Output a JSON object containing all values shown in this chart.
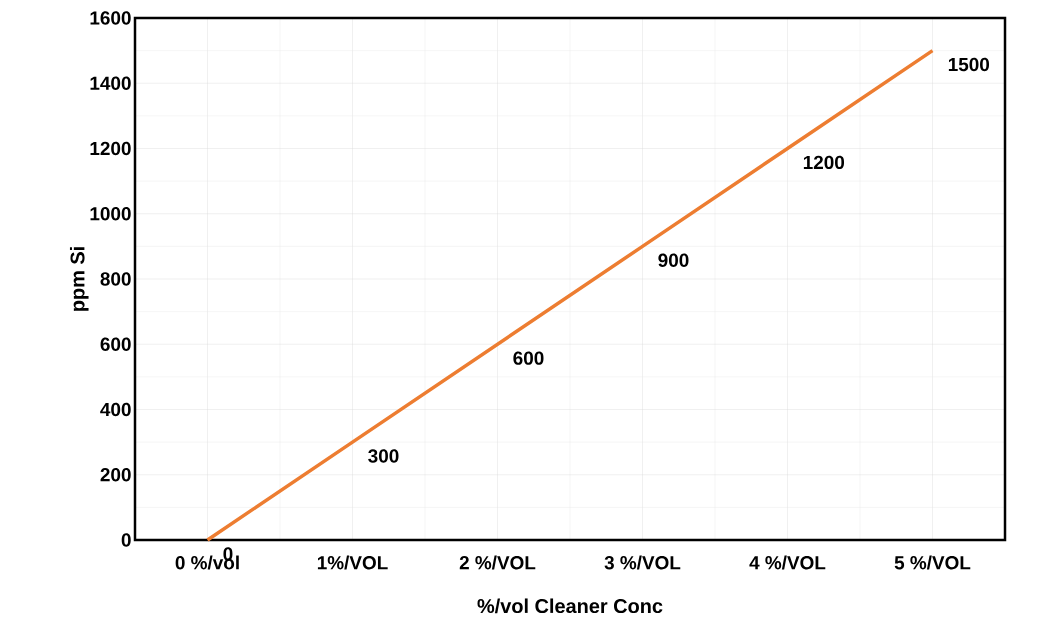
{
  "chart_data": {
    "type": "line",
    "xlabel": "%/vol Cleaner Conc",
    "ylabel": "ppm Si",
    "categories": [
      "0 %/vol",
      "1%/VOL",
      "2 %/VOL",
      "3 %/VOL",
      "4 %/VOL",
      "5 %/VOL"
    ],
    "values": [
      0,
      300,
      600,
      900,
      1200,
      1500
    ],
    "color": "#ed7d31",
    "ylim": [
      0,
      1600
    ],
    "yticks": [
      0,
      200,
      400,
      600,
      800,
      1000,
      1200,
      1400,
      1600
    ],
    "grid": true,
    "data_labels": true,
    "marker": "none",
    "line_style": "solid"
  }
}
